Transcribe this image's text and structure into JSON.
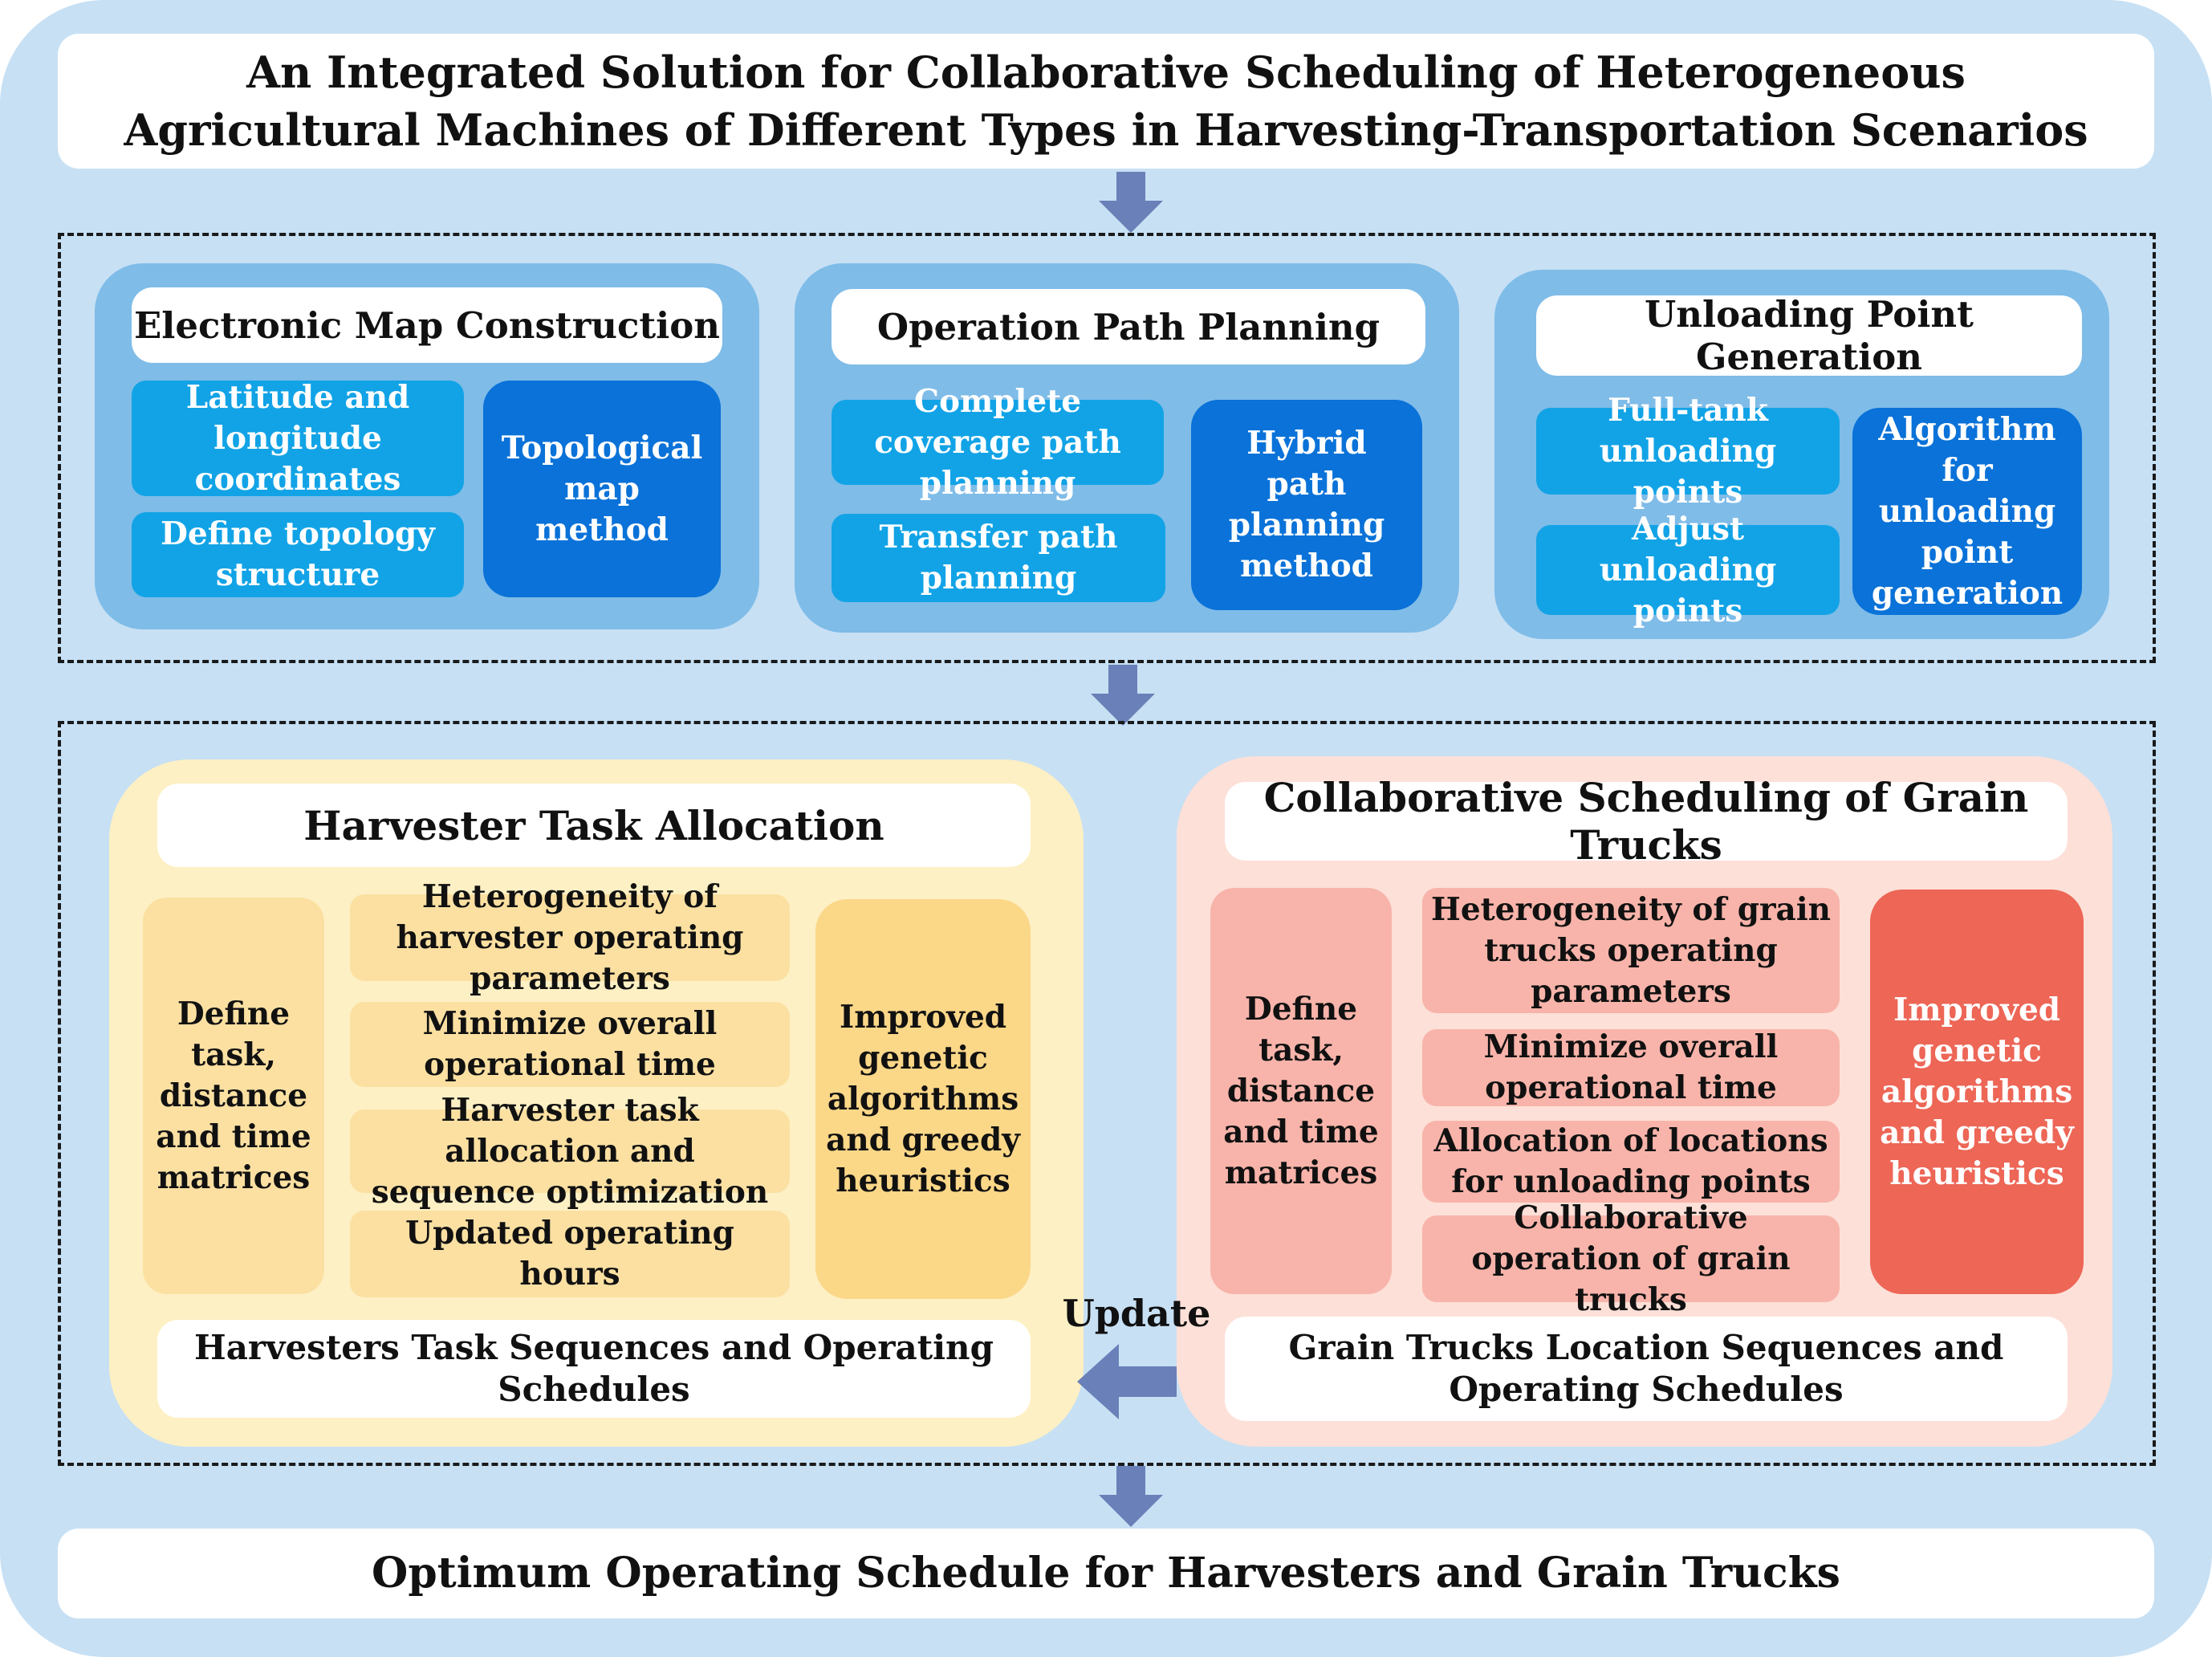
{
  "title": "An Integrated Solution for Collaborative Scheduling of Heterogeneous Agricultural Machines of Different Types in Harvesting-Transportation Scenarios",
  "map": {
    "title": "Electronic Map Construction",
    "item1": "Latitude and longitude coordinates",
    "item2": "Define topology structure",
    "method": "Topological map method"
  },
  "path": {
    "title": "Operation Path Planning",
    "item1": "Complete coverage path planning",
    "item2": "Transfer path planning",
    "method": "Hybrid path planning method"
  },
  "unload": {
    "title": "Unloading Point Generation",
    "item1": "Full-tank unloading points",
    "item2": "Adjust unloading points",
    "method": "Algorithm for unloading point generation"
  },
  "harvester": {
    "title": "Harvester Task Allocation",
    "left": "Define task, distance and time matrices",
    "item1": "Heterogeneity of harvester operating parameters",
    "item2": "Minimize overall operational time",
    "item3": "Harvester task allocation and sequence optimization",
    "item4": "Updated operating hours",
    "right": "Improved genetic algorithms and greedy heuristics",
    "output": "Harvesters Task Sequences and Operating Schedules"
  },
  "trucks": {
    "title": "Collaborative Scheduling of Grain Trucks",
    "left": "Define task, distance and time matrices",
    "item1": "Heterogeneity of grain trucks operating parameters",
    "item2": "Minimize overall operational time",
    "item3": "Allocation of locations for unloading points",
    "item4": "Collaborative operation of grain trucks",
    "right": "Improved genetic algorithms and greedy heuristics",
    "output": "Grain Trucks Location Sequences and Operating Schedules"
  },
  "update_label": "Update",
  "final": "Optimum Operating Schedule for Harvesters and Grain Trucks",
  "colors": {
    "background": "#c7e0f4",
    "arrow": "#6a80b8",
    "blue_panel": "#7fbce8",
    "blue_box": "#12a3e6",
    "dark_blue_box": "#0a72d8",
    "yellow_panel": "#fdf0c4",
    "pink_panel": "#fde0d8",
    "red_box": "#ed6656"
  }
}
